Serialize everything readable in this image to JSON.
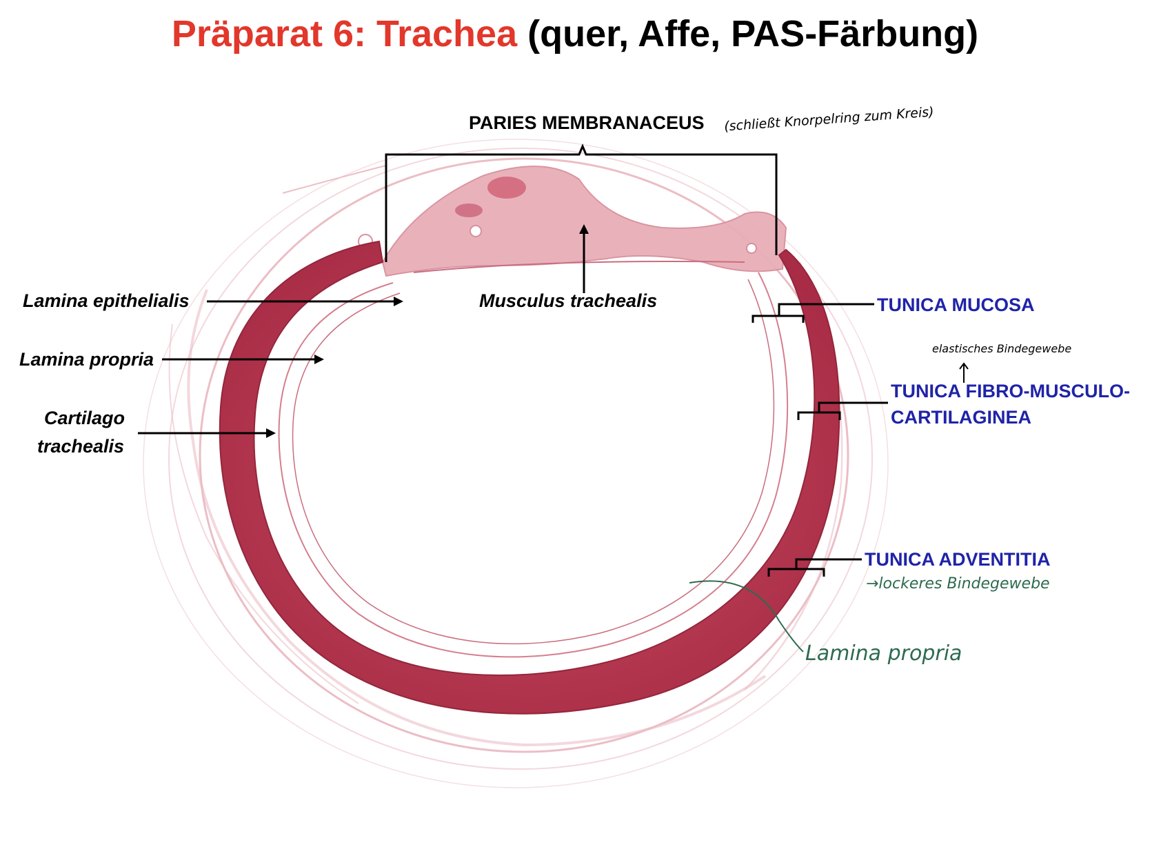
{
  "title": {
    "main": "Präparat 6: Trachea",
    "sub": "(quer, Affe, PAS-Färbung)"
  },
  "labels": {
    "paries": "PARIES MEMBRANACEUS",
    "paries_note": "(schließt Knorpelring zum Kreis)",
    "lamina_epithelialis": "Lamina epithelialis",
    "lamina_propria": "Lamina propria",
    "cartilago_line1": "Cartilago",
    "cartilago_line2": "trachealis",
    "musculus": "Musculus trachealis",
    "tunica_mucosa": "TUNICA MUCOSA",
    "tunica_fibro_line1": "TUNICA FIBRO-MUSCULO-",
    "tunica_fibro_line2": "CARTILAGINEA",
    "tunica_fibro_note": "elastisches Bindegewebe",
    "tunica_adventitia": "TUNICA ADVENTITIA",
    "tunica_adventitia_note": "→lockeres Bindegewebe",
    "lamina_propria_hand": "Lamina propria"
  },
  "colors": {
    "title_red": "#e2372b",
    "label_blue": "#1f23a8",
    "handwriting_green": "#2d6a4f",
    "cartilage": "#b8374e",
    "tissue_pink": "#e9b7bf"
  }
}
